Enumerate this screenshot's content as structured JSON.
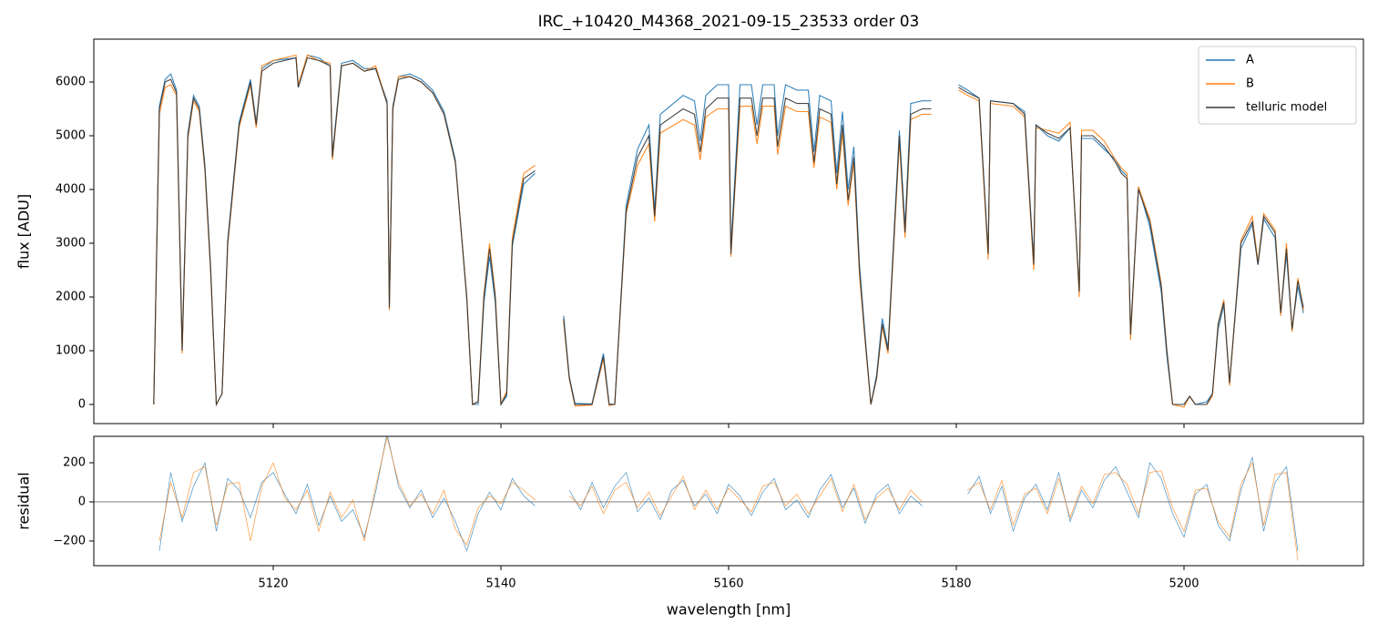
{
  "chart_data": [
    {
      "type": "line",
      "title": "IRC_+10420_M4368_2021-09-15_23533  order 03",
      "ylabel": "flux [ADU]",
      "x": [
        5109.5,
        5110,
        5110.5,
        5111,
        5111.5,
        5112,
        5112.5,
        5113,
        5113.5,
        5114,
        5114.5,
        5115,
        5115.5,
        5116,
        5117,
        5118,
        5118.5,
        5119,
        5120,
        5122,
        5122.2,
        5123,
        5124,
        5125,
        5125.2,
        5126,
        5127,
        5128,
        5129,
        5130,
        5130.2,
        5130.5,
        5131,
        5132,
        5133,
        5134,
        5135,
        5136,
        5137,
        5137.5,
        5138,
        5138.5,
        5139,
        5139.5,
        5140,
        5140.5,
        5141,
        5142,
        5143,
        5144,
        5145.5,
        5146,
        5146.5,
        5148,
        5149,
        5149.5,
        5150,
        5151,
        5152,
        5153,
        5153.5,
        5154,
        5156,
        5157,
        5157.5,
        5158,
        5159,
        5160,
        5160.2,
        5161,
        5162,
        5162.5,
        5163,
        5164,
        5164.3,
        5165,
        5166,
        5167,
        5167.5,
        5168,
        5169,
        5169.5,
        5170,
        5170.5,
        5171,
        5171.5,
        5172,
        5172.5,
        5173,
        5173.5,
        5174,
        5175,
        5175.5,
        5176,
        5177,
        5177.8,
        5179,
        5180.2,
        5181,
        5182,
        5182.8,
        5183,
        5185,
        5186,
        5186.8,
        5187,
        5188,
        5189,
        5190,
        5190.8,
        5191,
        5192,
        5193,
        5194,
        5194.5,
        5195,
        5195.3,
        5196,
        5197,
        5198,
        5198.5,
        5199,
        5200,
        5200.5,
        5201,
        5202,
        5202.5,
        5203,
        5203.5,
        5204,
        5205,
        5206,
        5206.5,
        5207,
        5208,
        5208.5,
        5209,
        5209.5,
        5210,
        5210.5
      ],
      "series": [
        {
          "name": "A",
          "color": "#1f77b4",
          "values": [
            0,
            5550,
            6050,
            6150,
            5850,
            1050,
            5050,
            5750,
            5550,
            4450,
            2550,
            0,
            200,
            3050,
            5250,
            6050,
            5250,
            6250,
            6400,
            6450,
            5900,
            6500,
            6450,
            6300,
            4650,
            6350,
            6400,
            6250,
            6250,
            5650,
            1800,
            5550,
            6100,
            6150,
            6050,
            5850,
            5450,
            4550,
            1950,
            0,
            0,
            1900,
            2750,
            1900,
            0,
            150,
            2950,
            4100,
            4300,
            null,
            1650,
            520,
            20,
            10,
            950,
            10,
            0,
            3700,
            4750,
            5200,
            3600,
            5400,
            5750,
            5650,
            4900,
            5750,
            5950,
            5950,
            2900,
            5950,
            5950,
            5200,
            5950,
            5950,
            5000,
            5950,
            5850,
            5850,
            4700,
            5750,
            5650,
            4300,
            5450,
            4000,
            4800,
            2600,
            1250,
            0,
            550,
            1600,
            1050,
            5100,
            3300,
            5600,
            5650,
            5650,
            null,
            5950,
            5850,
            5700,
            2800,
            5650,
            5600,
            5450,
            2650,
            5200,
            5000,
            4900,
            5150,
            2100,
            4950,
            4950,
            4750,
            4550,
            4350,
            4250,
            1300,
            4050,
            3300,
            2100,
            900,
            0,
            0,
            150,
            0,
            50,
            200,
            1400,
            1850,
            400,
            2900,
            3350,
            2600,
            3450,
            3100,
            1700,
            2800,
            1400,
            2200,
            1700
          ]
        },
        {
          "name": "B",
          "color": "#ff7f0e",
          "values": [
            0,
            5400,
            5900,
            5950,
            5750,
            950,
            4950,
            5650,
            5450,
            4350,
            2450,
            0,
            200,
            2950,
            5150,
            5950,
            5150,
            6300,
            6400,
            6500,
            5950,
            6500,
            6400,
            6350,
            4550,
            6300,
            6350,
            6200,
            6300,
            5600,
            1750,
            5500,
            6100,
            6100,
            6000,
            5800,
            5400,
            4500,
            2000,
            0,
            50,
            2050,
            3000,
            2050,
            0,
            250,
            3100,
            4300,
            4450,
            null,
            1550,
            480,
            -30,
            -10,
            850,
            -20,
            0,
            3550,
            4450,
            4850,
            3400,
            5050,
            5300,
            5200,
            4550,
            5350,
            5500,
            5500,
            2750,
            5550,
            5550,
            4850,
            5550,
            5550,
            4650,
            5550,
            5450,
            5450,
            4400,
            5350,
            5250,
            4000,
            5050,
            3700,
            4500,
            2400,
            1150,
            0,
            480,
            1450,
            950,
            4900,
            3100,
            5300,
            5400,
            5400,
            null,
            5850,
            5750,
            5650,
            2700,
            5600,
            5550,
            5350,
            2500,
            5150,
            5100,
            5050,
            5250,
            2000,
            5100,
            5100,
            4900,
            4550,
            4400,
            4300,
            1200,
            4050,
            3450,
            2250,
            1000,
            0,
            -50,
            150,
            0,
            0,
            150,
            1500,
            1950,
            350,
            3050,
            3500,
            2650,
            3550,
            3250,
            1650,
            3000,
            1350,
            2350,
            1750
          ]
        },
        {
          "name": "telluric model",
          "color": "#333333",
          "values": [
            0,
            5500,
            6000,
            6050,
            5800,
            1000,
            5000,
            5700,
            5500,
            4400,
            2500,
            0,
            200,
            3000,
            5200,
            6000,
            5200,
            6200,
            6350,
            6450,
            5900,
            6450,
            6400,
            6300,
            4600,
            6300,
            6350,
            6200,
            6250,
            5600,
            1800,
            5500,
            6050,
            6100,
            6000,
            5800,
            5400,
            4500,
            2000,
            0,
            50,
            2000,
            2900,
            2000,
            0,
            200,
            3000,
            4200,
            4350,
            null,
            1600,
            500,
            0,
            0,
            900,
            0,
            0,
            3600,
            4600,
            5000,
            3500,
            5200,
            5500,
            5400,
            4700,
            5500,
            5700,
            5700,
            2800,
            5700,
            5700,
            5000,
            5700,
            5700,
            4800,
            5700,
            5600,
            5600,
            4500,
            5500,
            5400,
            4100,
            5200,
            3800,
            4600,
            2500,
            1200,
            0,
            500,
            1500,
            1000,
            5000,
            3200,
            5400,
            5500,
            5500,
            null,
            5900,
            5800,
            5700,
            2800,
            5650,
            5600,
            5400,
            2600,
            5200,
            5050,
            4950,
            5150,
            2100,
            5000,
            5000,
            4800,
            4500,
            4300,
            4200,
            1300,
            4000,
            3400,
            2200,
            1000,
            0,
            0,
            150,
            0,
            0,
            200,
            1500,
            1900,
            400,
            3000,
            3400,
            2600,
            3500,
            3200,
            1700,
            2900,
            1400,
            2300,
            1800
          ]
        }
      ],
      "xlim": [
        5104.24,
        5215.76
      ],
      "xticks": [
        5120,
        5140,
        5160,
        5180,
        5200
      ],
      "ylim": [
        -356,
        6797
      ],
      "yticks": [
        0,
        1000,
        2000,
        3000,
        4000,
        5000,
        6000
      ],
      "legend": "upper right"
    },
    {
      "type": "line",
      "ylabel": "residual",
      "xlabel": "wavelength [nm]",
      "x": [
        5110,
        5111,
        5112,
        5113,
        5114,
        5115,
        5116,
        5117,
        5118,
        5119,
        5120,
        5121,
        5122,
        5123,
        5124,
        5125,
        5126,
        5127,
        5128,
        5129,
        5130,
        5131,
        5132,
        5133,
        5134,
        5135,
        5136,
        5137,
        5138,
        5139,
        5140,
        5141,
        5142,
        5143,
        5144,
        5146,
        5147,
        5148,
        5149,
        5150,
        5151,
        5152,
        5153,
        5154,
        5155,
        5156,
        5157,
        5158,
        5159,
        5160,
        5161,
        5162,
        5163,
        5164,
        5165,
        5166,
        5167,
        5168,
        5169,
        5170,
        5171,
        5172,
        5173,
        5174,
        5175,
        5176,
        5177,
        5178,
        5181,
        5182,
        5183,
        5184,
        5185,
        5186,
        5187,
        5188,
        5189,
        5190,
        5191,
        5192,
        5193,
        5194,
        5195,
        5196,
        5197,
        5198,
        5199,
        5200,
        5201,
        5202,
        5203,
        5204,
        5205,
        5206,
        5207,
        5208,
        5209,
        5210
      ],
      "series": [
        {
          "name": "A",
          "color": "#1f77b4",
          "values": [
            -250,
            150,
            -100,
            80,
            200,
            -150,
            120,
            60,
            -80,
            100,
            150,
            40,
            -60,
            90,
            -120,
            30,
            -100,
            -40,
            -180,
            50,
            350,
            80,
            -30,
            60,
            -80,
            20,
            -100,
            -250,
            -60,
            50,
            -40,
            120,
            30,
            -20,
            null,
            60,
            -40,
            100,
            -30,
            80,
            150,
            -50,
            20,
            -90,
            60,
            110,
            -20,
            40,
            -60,
            90,
            30,
            -70,
            50,
            120,
            -40,
            10,
            -80,
            60,
            140,
            -30,
            70,
            -110,
            40,
            90,
            -60,
            30,
            -20,
            null,
            40,
            130,
            -60,
            80,
            -150,
            20,
            90,
            -40,
            150,
            -100,
            60,
            -30,
            110,
            180,
            50,
            -80,
            200,
            120,
            -60,
            -180,
            40,
            90,
            -120,
            -200,
            60,
            230,
            -150,
            100,
            180,
            -250
          ]
        },
        {
          "name": "B",
          "color": "#ff7f0e",
          "values": [
            -200,
            100,
            -80,
            150,
            180,
            -120,
            90,
            100,
            -200,
            80,
            200,
            20,
            -40,
            60,
            -150,
            50,
            -80,
            10,
            -200,
            80,
            330,
            100,
            -20,
            40,
            -60,
            60,
            -140,
            -220,
            -30,
            30,
            -10,
            100,
            60,
            10,
            null,
            30,
            -20,
            80,
            -60,
            60,
            100,
            -30,
            50,
            -70,
            30,
            130,
            -40,
            60,
            -40,
            70,
            10,
            -50,
            80,
            100,
            -20,
            40,
            -60,
            30,
            120,
            -50,
            90,
            -90,
            20,
            70,
            -40,
            60,
            0,
            null,
            60,
            100,
            -40,
            110,
            -120,
            40,
            70,
            -60,
            120,
            -80,
            80,
            -10,
            140,
            150,
            90,
            -60,
            150,
            160,
            -30,
            -150,
            60,
            70,
            -100,
            -180,
            90,
            200,
            -120,
            140,
            150,
            -300
          ]
        }
      ],
      "hline": 0,
      "xlim": [
        5104.24,
        5215.76
      ],
      "xticks": [
        5120,
        5140,
        5160,
        5180,
        5200
      ],
      "ylim": [
        -326,
        335
      ],
      "yticks": [
        {
          "value": -200,
          "label": "−200"
        },
        0,
        200
      ]
    }
  ]
}
